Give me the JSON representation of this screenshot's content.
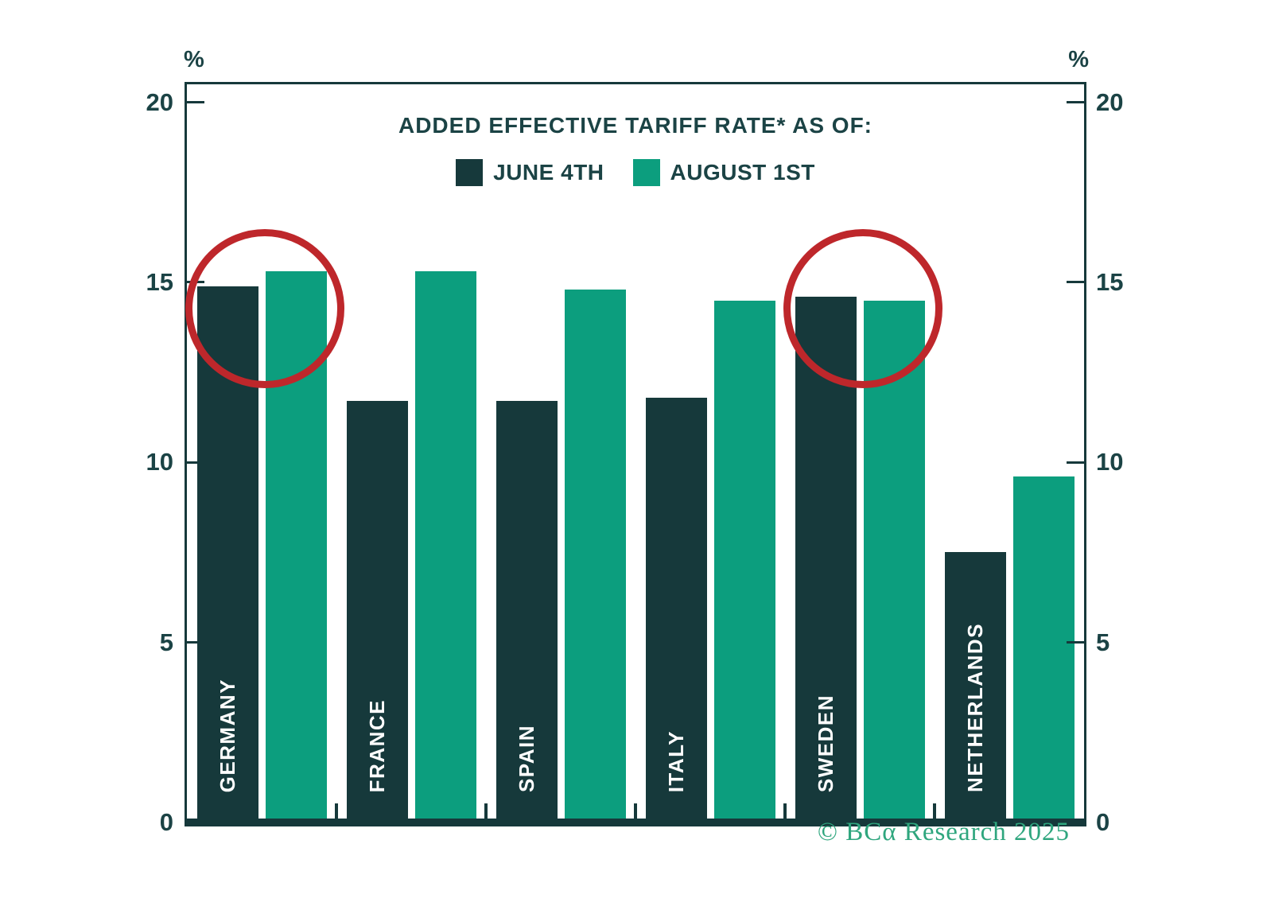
{
  "title": "ADDED EFFECTIVE TARIFF RATE* AS OF:",
  "axis_unit_left": "%",
  "axis_unit_right": "%",
  "footer": "© BCα Research 2025",
  "colors": {
    "june": "#16393B",
    "august": "#0C9E7E",
    "axis": "#16393B",
    "text": "#1B4345",
    "bar_label": "#FFFFFF",
    "highlight_circle": "#BE272B",
    "footer_text": "#2FA67E"
  },
  "legend": {
    "items": [
      {
        "label": "JUNE 4TH",
        "color": "#16393B"
      },
      {
        "label": "AUGUST 1ST",
        "color": "#0C9E7E"
      }
    ]
  },
  "chart_data": {
    "type": "bar",
    "categories": [
      "GERMANY",
      "FRANCE",
      "SPAIN",
      "ITALY",
      "SWEDEN",
      "NETHERLANDS"
    ],
    "series": [
      {
        "name": "JUNE 4TH",
        "values": [
          14.9,
          11.7,
          11.7,
          11.8,
          14.6,
          7.5
        ]
      },
      {
        "name": "AUGUST 1ST",
        "values": [
          15.3,
          15.3,
          14.8,
          14.5,
          14.5,
          9.6
        ]
      }
    ],
    "ylabel": "%",
    "ylim": [
      0,
      20.5
    ],
    "yticks": [
      0,
      5,
      10,
      15,
      20
    ],
    "grid": false,
    "legend_position": "top-center",
    "annotations": [
      {
        "type": "circle",
        "target": "GERMANY",
        "color": "#BE272B"
      },
      {
        "type": "circle",
        "target": "SWEDEN",
        "color": "#BE272B"
      }
    ]
  }
}
